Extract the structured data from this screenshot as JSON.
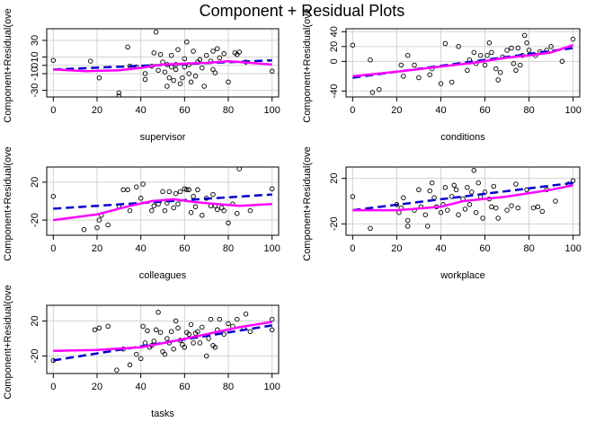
{
  "title": "Component + Residual Plots",
  "chart_data": [
    {
      "type": "scatter",
      "xlabel": "supervisor",
      "ylabel": "Component+Residual(ove",
      "xlim": [
        -3,
        103
      ],
      "ylim": [
        -38,
        44
      ],
      "xticks": [
        0,
        20,
        40,
        60,
        80,
        100
      ],
      "yticks": [
        -30,
        -10,
        0,
        10,
        30
      ],
      "grid": true,
      "points": [
        [
          0,
          6
        ],
        [
          17,
          5
        ],
        [
          21,
          -15
        ],
        [
          30,
          -37
        ],
        [
          30,
          -33
        ],
        [
          34,
          22
        ],
        [
          35,
          -1
        ],
        [
          38,
          -2
        ],
        [
          42,
          -10
        ],
        [
          42,
          -17
        ],
        [
          45,
          -1
        ],
        [
          46,
          15
        ],
        [
          47,
          40
        ],
        [
          48,
          -6
        ],
        [
          49,
          13
        ],
        [
          50,
          4
        ],
        [
          51,
          -8
        ],
        [
          52,
          1
        ],
        [
          52,
          -25
        ],
        [
          53,
          -15
        ],
        [
          54,
          -2
        ],
        [
          54,
          12
        ],
        [
          55,
          -18
        ],
        [
          56,
          -5
        ],
        [
          56,
          1
        ],
        [
          57,
          19
        ],
        [
          58,
          -22
        ],
        [
          59,
          -15
        ],
        [
          60,
          -2
        ],
        [
          60,
          8
        ],
        [
          61,
          28
        ],
        [
          62,
          1
        ],
        [
          62,
          -10
        ],
        [
          63,
          -20
        ],
        [
          64,
          17
        ],
        [
          65,
          -13
        ],
        [
          66,
          4
        ],
        [
          67,
          7
        ],
        [
          68,
          -3
        ],
        [
          69,
          -25
        ],
        [
          70,
          12
        ],
        [
          72,
          5
        ],
        [
          73,
          -5
        ],
        [
          73,
          17
        ],
        [
          74,
          -9
        ],
        [
          75,
          20
        ],
        [
          76,
          9
        ],
        [
          78,
          14
        ],
        [
          80,
          -20
        ],
        [
          83,
          15
        ],
        [
          84,
          13
        ],
        [
          85,
          16
        ],
        [
          88,
          4
        ],
        [
          100,
          -7
        ]
      ],
      "fit": [
        [
          0,
          -5
        ],
        [
          100,
          6
        ]
      ],
      "smooth": [
        [
          0,
          -5
        ],
        [
          15,
          -7
        ],
        [
          30,
          -6
        ],
        [
          40,
          -3
        ],
        [
          50,
          1
        ],
        [
          60,
          2
        ],
        [
          70,
          3
        ],
        [
          80,
          5
        ],
        [
          90,
          3
        ],
        [
          100,
          1
        ]
      ]
    },
    {
      "type": "scatter",
      "xlabel": "conditions",
      "ylabel": "Component+Residual(ove",
      "xlim": [
        -3,
        103
      ],
      "ylim": [
        -48,
        44
      ],
      "xticks": [
        0,
        20,
        40,
        60,
        80,
        100
      ],
      "yticks": [
        -40,
        0,
        20,
        40
      ],
      "grid": true,
      "points": [
        [
          0,
          22
        ],
        [
          8,
          2
        ],
        [
          9,
          -42
        ],
        [
          12,
          -38
        ],
        [
          22,
          -5
        ],
        [
          23,
          -20
        ],
        [
          25,
          8
        ],
        [
          28,
          -5
        ],
        [
          30,
          -22
        ],
        [
          35,
          -18
        ],
        [
          36,
          -10
        ],
        [
          40,
          -30
        ],
        [
          42,
          24
        ],
        [
          45,
          -28
        ],
        [
          48,
          20
        ],
        [
          52,
          -12
        ],
        [
          53,
          2
        ],
        [
          55,
          12
        ],
        [
          56,
          -3
        ],
        [
          58,
          8
        ],
        [
          60,
          -5
        ],
        [
          61,
          8
        ],
        [
          62,
          25
        ],
        [
          63,
          12
        ],
        [
          65,
          -10
        ],
        [
          66,
          -25
        ],
        [
          67,
          -15
        ],
        [
          68,
          6
        ],
        [
          70,
          15
        ],
        [
          72,
          18
        ],
        [
          73,
          -3
        ],
        [
          74,
          -12
        ],
        [
          75,
          18
        ],
        [
          76,
          -5
        ],
        [
          77,
          8
        ],
        [
          78,
          35
        ],
        [
          79,
          25
        ],
        [
          80,
          15
        ],
        [
          83,
          8
        ],
        [
          85,
          13
        ],
        [
          88,
          15
        ],
        [
          90,
          20
        ],
        [
          95,
          0
        ],
        [
          100,
          30
        ]
      ],
      "fit": [
        [
          0,
          -22
        ],
        [
          100,
          18
        ]
      ],
      "smooth": [
        [
          0,
          -20
        ],
        [
          20,
          -14
        ],
        [
          40,
          -7
        ],
        [
          55,
          -2
        ],
        [
          70,
          5
        ],
        [
          80,
          8
        ],
        [
          90,
          12
        ],
        [
          100,
          22
        ]
      ]
    },
    {
      "type": "scatter",
      "xlabel": "colleagues",
      "ylabel": "Component+Residual(ove",
      "xlim": [
        -3,
        103
      ],
      "ylim": [
        -36,
        36
      ],
      "xticks": [
        0,
        20,
        40,
        60,
        80,
        100
      ],
      "yticks": [
        -20,
        20
      ],
      "grid": true,
      "points": [
        [
          0,
          5
        ],
        [
          14,
          -30
        ],
        [
          20,
          -28
        ],
        [
          21,
          -20
        ],
        [
          22,
          -15
        ],
        [
          25,
          -25
        ],
        [
          30,
          -5
        ],
        [
          32,
          12
        ],
        [
          34,
          12
        ],
        [
          35,
          -10
        ],
        [
          38,
          15
        ],
        [
          40,
          3
        ],
        [
          41,
          18
        ],
        [
          45,
          -10
        ],
        [
          46,
          -5
        ],
        [
          48,
          -3
        ],
        [
          50,
          10
        ],
        [
          51,
          -10
        ],
        [
          52,
          -2
        ],
        [
          53,
          10
        ],
        [
          55,
          -7
        ],
        [
          56,
          8
        ],
        [
          57,
          -3
        ],
        [
          58,
          10
        ],
        [
          60,
          13
        ],
        [
          61,
          12
        ],
        [
          62,
          12
        ],
        [
          63,
          -12
        ],
        [
          64,
          5
        ],
        [
          65,
          -6
        ],
        [
          66,
          12
        ],
        [
          68,
          -15
        ],
        [
          70,
          3
        ],
        [
          72,
          -5
        ],
        [
          73,
          7
        ],
        [
          74,
          -5
        ],
        [
          75,
          -9
        ],
        [
          77,
          -7
        ],
        [
          78,
          -10
        ],
        [
          80,
          -23
        ],
        [
          82,
          -3
        ],
        [
          84,
          -13
        ],
        [
          85,
          34
        ],
        [
          90,
          -10
        ],
        [
          100,
          13
        ]
      ],
      "fit": [
        [
          0,
          -8
        ],
        [
          100,
          7
        ]
      ],
      "smooth": [
        [
          0,
          -20
        ],
        [
          20,
          -14
        ],
        [
          35,
          -5
        ],
        [
          45,
          0
        ],
        [
          55,
          2
        ],
        [
          65,
          -1
        ],
        [
          75,
          -3
        ],
        [
          85,
          -5
        ],
        [
          100,
          -3
        ]
      ]
    },
    {
      "type": "scatter",
      "xlabel": "workplace",
      "ylabel": "Component+Residual(ove",
      "xlim": [
        -3,
        103
      ],
      "ylim": [
        -30,
        30
      ],
      "xticks": [
        0,
        20,
        40,
        60,
        80,
        100
      ],
      "yticks": [
        -20,
        20
      ],
      "grid": true,
      "points": [
        [
          0,
          4
        ],
        [
          8,
          -24
        ],
        [
          20,
          -3
        ],
        [
          21,
          -10
        ],
        [
          22,
          -6
        ],
        [
          23,
          3
        ],
        [
          25,
          -17
        ],
        [
          25,
          -22
        ],
        [
          28,
          -8
        ],
        [
          30,
          10
        ],
        [
          31,
          -5
        ],
        [
          33,
          -12
        ],
        [
          34,
          -22
        ],
        [
          35,
          9
        ],
        [
          36,
          16
        ],
        [
          37,
          3
        ],
        [
          38,
          -5
        ],
        [
          40,
          -10
        ],
        [
          41,
          -3
        ],
        [
          42,
          12
        ],
        [
          43,
          -8
        ],
        [
          45,
          4
        ],
        [
          46,
          14
        ],
        [
          47,
          10
        ],
        [
          48,
          -12
        ],
        [
          50,
          2
        ],
        [
          51,
          -7
        ],
        [
          52,
          12
        ],
        [
          53,
          -3
        ],
        [
          54,
          8
        ],
        [
          55,
          27
        ],
        [
          56,
          -10
        ],
        [
          57,
          16
        ],
        [
          58,
          4
        ],
        [
          59,
          -15
        ],
        [
          60,
          8
        ],
        [
          62,
          2
        ],
        [
          63,
          -5
        ],
        [
          64,
          13
        ],
        [
          65,
          -6
        ],
        [
          66,
          -15
        ],
        [
          70,
          -8
        ],
        [
          72,
          -4
        ],
        [
          74,
          15
        ],
        [
          75,
          -6
        ],
        [
          79,
          10
        ],
        [
          82,
          -6
        ],
        [
          84,
          -5
        ],
        [
          86,
          -9
        ],
        [
          88,
          10
        ],
        [
          92,
          0
        ],
        [
          98,
          15
        ],
        [
          100,
          18
        ]
      ],
      "fit": [
        [
          0,
          -8
        ],
        [
          100,
          16
        ]
      ],
      "smooth": [
        [
          0,
          -8
        ],
        [
          20,
          -8
        ],
        [
          40,
          -5
        ],
        [
          50,
          0
        ],
        [
          60,
          2
        ],
        [
          70,
          4
        ],
        [
          80,
          7
        ],
        [
          90,
          10
        ],
        [
          100,
          14
        ]
      ]
    },
    {
      "type": "scatter",
      "xlabel": "tasks",
      "ylabel": "Component+Residual(ove",
      "xlim": [
        -3,
        103
      ],
      "ylim": [
        -40,
        38
      ],
      "xticks": [
        0,
        20,
        40,
        60,
        80,
        100
      ],
      "yticks": [
        -20,
        20
      ],
      "grid": true,
      "points": [
        [
          0,
          -25
        ],
        [
          19,
          10
        ],
        [
          21,
          12
        ],
        [
          25,
          14
        ],
        [
          29,
          -36
        ],
        [
          32,
          -12
        ],
        [
          35,
          -30
        ],
        [
          38,
          -18
        ],
        [
          40,
          -23
        ],
        [
          41,
          14
        ],
        [
          42,
          -5
        ],
        [
          43,
          9
        ],
        [
          44,
          -10
        ],
        [
          45,
          -8
        ],
        [
          46,
          -3
        ],
        [
          47,
          10
        ],
        [
          48,
          30
        ],
        [
          49,
          7
        ],
        [
          50,
          -15
        ],
        [
          51,
          -18
        ],
        [
          52,
          0
        ],
        [
          53,
          -5
        ],
        [
          54,
          8
        ],
        [
          55,
          -12
        ],
        [
          56,
          20
        ],
        [
          57,
          12
        ],
        [
          58,
          -2
        ],
        [
          59,
          -7
        ],
        [
          60,
          -10
        ],
        [
          61,
          7
        ],
        [
          62,
          5
        ],
        [
          63,
          16
        ],
        [
          64,
          -5
        ],
        [
          65,
          6
        ],
        [
          66,
          8
        ],
        [
          67,
          -5
        ],
        [
          68,
          13
        ],
        [
          70,
          -20
        ],
        [
          71,
          0
        ],
        [
          72,
          22
        ],
        [
          73,
          -8
        ],
        [
          74,
          -10
        ],
        [
          75,
          10
        ],
        [
          76,
          22
        ],
        [
          78,
          5
        ],
        [
          80,
          17
        ],
        [
          82,
          14
        ],
        [
          84,
          22
        ],
        [
          87,
          12
        ],
        [
          88,
          28
        ],
        [
          90,
          8
        ],
        [
          100,
          10
        ],
        [
          100,
          22
        ]
      ],
      "fit": [
        [
          0,
          -25
        ],
        [
          100,
          15
        ]
      ],
      "smooth": [
        [
          0,
          -14
        ],
        [
          20,
          -13
        ],
        [
          40,
          -10
        ],
        [
          55,
          -3
        ],
        [
          70,
          5
        ],
        [
          85,
          13
        ],
        [
          100,
          19
        ]
      ]
    }
  ]
}
